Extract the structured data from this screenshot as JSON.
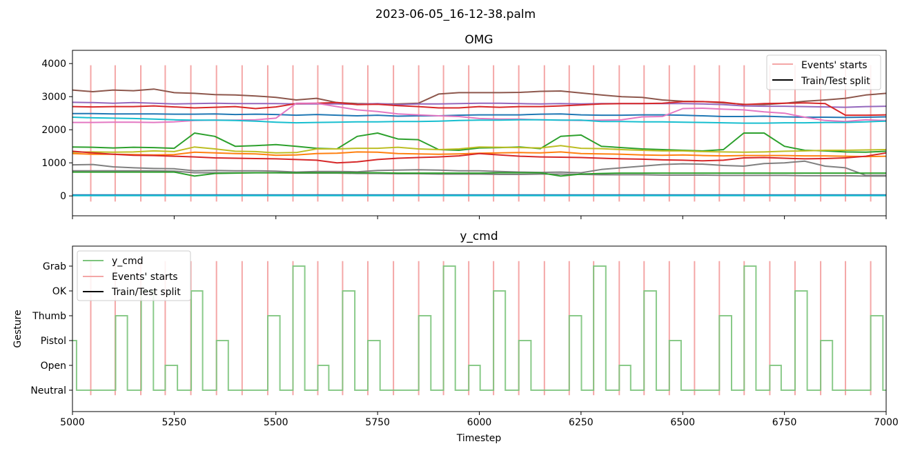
{
  "suptitle": "2023-06-05_16-12-38.palm",
  "chart_data": [
    {
      "type": "line",
      "title": "OMG",
      "xlabel": "",
      "ylabel": "",
      "xlim": [
        5000,
        7000
      ],
      "ylim": [
        -600,
        4400
      ],
      "yticks": [
        0,
        1000,
        2000,
        3000,
        4000
      ],
      "grid": false,
      "legend_placement": "upper right",
      "legend": [
        {
          "label": "Events' starts",
          "color": "#f4a6a6"
        },
        {
          "label": "Train/Test split",
          "color": "#000000"
        }
      ],
      "event_starts": [
        5045,
        5105,
        5168,
        5228,
        5291,
        5354,
        5417,
        5480,
        5542,
        5603,
        5664,
        5726,
        5789,
        5851,
        5912,
        5974,
        6035,
        6097,
        6160,
        6221,
        6281,
        6344,
        6405,
        6467,
        6529,
        6590,
        6651,
        6714,
        6776,
        6839,
        6900,
        6962
      ],
      "event_color": "#f4a6a6",
      "series": [
        {
          "color": "#8c564b",
          "values": [
            3200,
            3150,
            3200,
            3180,
            3230,
            3120,
            3100,
            3060,
            3050,
            3020,
            2980,
            2900,
            2950,
            2820,
            2790,
            2780,
            2780,
            2800,
            3080,
            3120,
            3120,
            3120,
            3130,
            3160,
            3170,
            3110,
            3050,
            3000,
            2980,
            2900,
            2860,
            2850,
            2810,
            2770,
            2760,
            2800,
            2860,
            2900,
            2950,
            3050,
            3100
          ]
        },
        {
          "color": "#9467bd",
          "values": [
            2830,
            2820,
            2800,
            2820,
            2800,
            2780,
            2790,
            2800,
            2790,
            2790,
            2790,
            2780,
            2780,
            2780,
            2770,
            2790,
            2760,
            2780,
            2780,
            2790,
            2800,
            2800,
            2790,
            2780,
            2790,
            2780,
            2790,
            2790,
            2790,
            2790,
            2790,
            2780,
            2760,
            2720,
            2710,
            2710,
            2700,
            2690,
            2680,
            2700,
            2710
          ]
        },
        {
          "color": "#d62728",
          "values": [
            2700,
            2690,
            2700,
            2700,
            2720,
            2690,
            2660,
            2680,
            2700,
            2640,
            2690,
            2790,
            2800,
            2820,
            2760,
            2770,
            2730,
            2700,
            2660,
            2660,
            2700,
            2680,
            2700,
            2700,
            2720,
            2750,
            2780,
            2790,
            2790,
            2800,
            2850,
            2850,
            2830,
            2760,
            2790,
            2800,
            2810,
            2790,
            2440,
            2440,
            2450
          ]
        },
        {
          "color": "#1f77b4",
          "values": [
            2490,
            2490,
            2480,
            2480,
            2480,
            2470,
            2470,
            2480,
            2460,
            2470,
            2460,
            2440,
            2460,
            2440,
            2420,
            2440,
            2410,
            2420,
            2420,
            2440,
            2450,
            2450,
            2450,
            2470,
            2480,
            2450,
            2440,
            2440,
            2450,
            2450,
            2440,
            2420,
            2400,
            2400,
            2410,
            2390,
            2380,
            2380,
            2370,
            2380,
            2390
          ]
        },
        {
          "color": "#e377c2",
          "values": [
            2220,
            2220,
            2230,
            2230,
            2220,
            2240,
            2280,
            2290,
            2290,
            2300,
            2350,
            2800,
            2800,
            2700,
            2600,
            2550,
            2480,
            2450,
            2420,
            2400,
            2340,
            2320,
            2320,
            2300,
            2290,
            2280,
            2290,
            2300,
            2390,
            2400,
            2640,
            2650,
            2620,
            2600,
            2540,
            2500,
            2380,
            2280,
            2250,
            2300,
            2280
          ]
        },
        {
          "color": "#17becf",
          "values": [
            2380,
            2360,
            2350,
            2340,
            2320,
            2300,
            2290,
            2290,
            2280,
            2260,
            2230,
            2210,
            2220,
            2230,
            2240,
            2240,
            2250,
            2250,
            2260,
            2280,
            2290,
            2290,
            2300,
            2300,
            2290,
            2290,
            2250,
            2250,
            2240,
            2240,
            2230,
            2220,
            2210,
            2200,
            2200,
            2210,
            2210,
            2220,
            2220,
            2240,
            2260
          ]
        },
        {
          "color": "#2ca02c",
          "values": [
            1480,
            1470,
            1450,
            1470,
            1460,
            1440,
            1900,
            1800,
            1500,
            1520,
            1550,
            1500,
            1440,
            1420,
            1800,
            1900,
            1720,
            1700,
            1400,
            1380,
            1450,
            1460,
            1480,
            1430,
            1800,
            1840,
            1500,
            1460,
            1420,
            1400,
            1380,
            1360,
            1400,
            1900,
            1900,
            1500,
            1380,
            1360,
            1330,
            1320,
            1350
          ]
        },
        {
          "color": "#bcbd22",
          "values": [
            1320,
            1330,
            1320,
            1330,
            1360,
            1340,
            1480,
            1420,
            1350,
            1340,
            1300,
            1310,
            1420,
            1420,
            1440,
            1440,
            1470,
            1420,
            1400,
            1420,
            1480,
            1470,
            1460,
            1450,
            1520,
            1440,
            1430,
            1400,
            1380,
            1360,
            1360,
            1340,
            1330,
            1320,
            1330,
            1350,
            1360,
            1380,
            1380,
            1390,
            1400
          ]
        },
        {
          "color": "#ff7f0e",
          "values": [
            1280,
            1260,
            1260,
            1250,
            1240,
            1250,
            1320,
            1300,
            1280,
            1270,
            1230,
            1240,
            1280,
            1290,
            1330,
            1320,
            1280,
            1270,
            1260,
            1270,
            1290,
            1300,
            1310,
            1300,
            1330,
            1280,
            1270,
            1260,
            1240,
            1230,
            1240,
            1220,
            1210,
            1220,
            1220,
            1220,
            1210,
            1210,
            1200,
            1190,
            1200
          ]
        },
        {
          "color": "#d62728",
          "values": [
            1350,
            1300,
            1260,
            1230,
            1220,
            1200,
            1180,
            1150,
            1140,
            1130,
            1120,
            1100,
            1080,
            1000,
            1030,
            1100,
            1140,
            1160,
            1180,
            1210,
            1280,
            1240,
            1200,
            1180,
            1170,
            1160,
            1140,
            1120,
            1110,
            1090,
            1080,
            1060,
            1080,
            1150,
            1160,
            1140,
            1120,
            1130,
            1150,
            1200,
            1300
          ]
        },
        {
          "color": "#7f7f7f",
          "values": [
            940,
            950,
            880,
            850,
            830,
            820,
            760,
            770,
            760,
            760,
            750,
            720,
            740,
            740,
            730,
            770,
            780,
            790,
            780,
            760,
            760,
            740,
            720,
            710,
            720,
            700,
            800,
            850,
            900,
            950,
            970,
            960,
            920,
            900,
            980,
            1000,
            1050,
            900,
            850,
            620,
            620
          ]
        },
        {
          "color": "#7f7f7f",
          "values": [
            760,
            760,
            760,
            760,
            760,
            750,
            700,
            700,
            700,
            700,
            700,
            690,
            690,
            690,
            680,
            680,
            670,
            670,
            660,
            660,
            660,
            650,
            650,
            660,
            660,
            650,
            640,
            640,
            640,
            630,
            630,
            630,
            620,
            620,
            620,
            620,
            610,
            610,
            610,
            600,
            600
          ]
        },
        {
          "color": "#2ca02c",
          "values": [
            720,
            720,
            720,
            720,
            720,
            720,
            600,
            680,
            690,
            700,
            700,
            700,
            700,
            700,
            700,
            700,
            690,
            690,
            690,
            690,
            690,
            700,
            700,
            700,
            600,
            660,
            680,
            690,
            690,
            690,
            690,
            690,
            690,
            690,
            690,
            690,
            690,
            690,
            690,
            690,
            690
          ]
        },
        {
          "color": "#1f77b4",
          "values": [
            30,
            30,
            30,
            30,
            30,
            30,
            30,
            30,
            30,
            30,
            30,
            30,
            30,
            30,
            30,
            30,
            30,
            30,
            30,
            30,
            30,
            30,
            30,
            30,
            30,
            30,
            30,
            30,
            30,
            30,
            30,
            30,
            30,
            30,
            30,
            30,
            30,
            30,
            30,
            30,
            30
          ]
        },
        {
          "color": "#17becf",
          "values": [
            10,
            10,
            10,
            10,
            10,
            10,
            10,
            10,
            10,
            10,
            10,
            10,
            10,
            10,
            10,
            10,
            10,
            10,
            10,
            10,
            10,
            10,
            10,
            10,
            10,
            10,
            10,
            10,
            10,
            10,
            10,
            10,
            10,
            10,
            10,
            10,
            10,
            10,
            10,
            10,
            10
          ]
        }
      ]
    },
    {
      "type": "line",
      "title": "y_cmd",
      "xlabel": "Timestep",
      "ylabel": "Gesture",
      "xlim": [
        5000,
        7000
      ],
      "xticks": [
        5000,
        5250,
        5500,
        5750,
        6000,
        6250,
        6500,
        6750,
        7000
      ],
      "categories": [
        "Neutral",
        "Open",
        "Pistol",
        "Thumb",
        "OK",
        "Grab"
      ],
      "grid": false,
      "legend_placement": "upper left",
      "legend": [
        {
          "label": "y_cmd",
          "color": "#7cc47c"
        },
        {
          "label": "Events' starts",
          "color": "#f4a6a6"
        },
        {
          "label": "Train/Test split",
          "color": "#000000"
        }
      ],
      "event_starts": [
        5045,
        5105,
        5168,
        5228,
        5291,
        5354,
        5417,
        5480,
        5542,
        5603,
        5664,
        5726,
        5789,
        5851,
        5912,
        5974,
        6035,
        6097,
        6160,
        6221,
        6281,
        6344,
        6405,
        6467,
        6529,
        6590,
        6651,
        6714,
        6776,
        6839,
        6900,
        6962
      ],
      "event_color": "#f4a6a6",
      "series_name": "y_cmd",
      "series_color": "#7cc47c",
      "steps": [
        [
          5000,
          2
        ],
        [
          5010,
          0
        ],
        [
          5106,
          3
        ],
        [
          5135,
          0
        ],
        [
          5169,
          4
        ],
        [
          5199,
          0
        ],
        [
          5228,
          1
        ],
        [
          5258,
          0
        ],
        [
          5292,
          4
        ],
        [
          5320,
          0
        ],
        [
          5354,
          2
        ],
        [
          5383,
          0
        ],
        [
          5480,
          3
        ],
        [
          5510,
          0
        ],
        [
          5542,
          5
        ],
        [
          5571,
          0
        ],
        [
          5603,
          1
        ],
        [
          5630,
          0
        ],
        [
          5664,
          4
        ],
        [
          5694,
          0
        ],
        [
          5726,
          2
        ],
        [
          5756,
          0
        ],
        [
          5851,
          3
        ],
        [
          5881,
          0
        ],
        [
          5912,
          5
        ],
        [
          5941,
          0
        ],
        [
          5974,
          1
        ],
        [
          6002,
          0
        ],
        [
          6035,
          4
        ],
        [
          6064,
          0
        ],
        [
          6097,
          2
        ],
        [
          6127,
          0
        ],
        [
          6221,
          3
        ],
        [
          6251,
          0
        ],
        [
          6281,
          5
        ],
        [
          6311,
          0
        ],
        [
          6344,
          1
        ],
        [
          6372,
          0
        ],
        [
          6405,
          4
        ],
        [
          6435,
          0
        ],
        [
          6467,
          2
        ],
        [
          6496,
          0
        ],
        [
          6590,
          3
        ],
        [
          6620,
          0
        ],
        [
          6651,
          5
        ],
        [
          6680,
          0
        ],
        [
          6714,
          1
        ],
        [
          6742,
          0
        ],
        [
          6776,
          4
        ],
        [
          6806,
          0
        ],
        [
          6839,
          2
        ],
        [
          6868,
          0
        ],
        [
          6962,
          3
        ],
        [
          6992,
          0
        ],
        [
          7000,
          0
        ]
      ]
    }
  ]
}
